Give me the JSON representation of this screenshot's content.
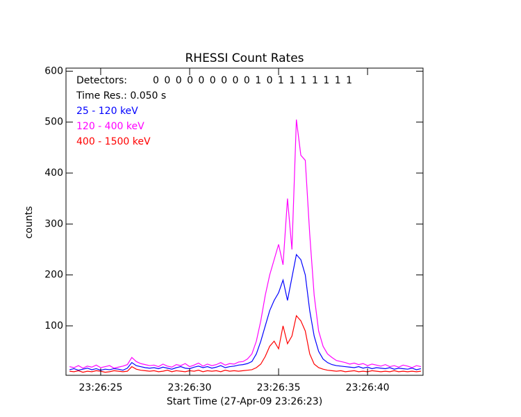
{
  "chart_data": {
    "type": "line",
    "title": "RHESSI Count Rates",
    "x_label": "Start Time (27-Apr-09 23:26:23)",
    "y_label": "counts",
    "detectors_label": "Detectors:",
    "detectors": "0 0 0 0 0 0 0 0 0 1 0 1 1 1 1 1 1 1",
    "time_res": "Time Res.: 0.050 s",
    "xlim": [
      23.05,
      43.12
    ],
    "ylim": [
      3,
      606
    ],
    "xticks": [
      {
        "value": 25,
        "label": "23:26:25"
      },
      {
        "value": 30,
        "label": "23:26:30"
      },
      {
        "value": 35,
        "label": "23:26:35"
      },
      {
        "value": 40,
        "label": "23:26:40"
      }
    ],
    "yticks": [
      100,
      200,
      300,
      400,
      500,
      600
    ],
    "x": [
      23.25,
      23.5,
      23.75,
      24,
      24.25,
      24.5,
      24.75,
      25,
      25.25,
      25.5,
      25.75,
      26,
      26.25,
      26.5,
      26.75,
      27,
      27.25,
      27.5,
      27.75,
      28,
      28.25,
      28.5,
      28.75,
      29,
      29.25,
      29.5,
      29.75,
      30,
      30.25,
      30.5,
      30.75,
      31,
      31.25,
      31.5,
      31.75,
      32,
      32.25,
      32.5,
      32.75,
      33,
      33.25,
      33.5,
      33.75,
      34,
      34.25,
      34.5,
      34.75,
      35,
      35.25,
      35.5,
      35.75,
      36,
      36.25,
      36.5,
      36.75,
      37,
      37.25,
      37.5,
      37.75,
      38,
      38.25,
      38.5,
      38.75,
      39,
      39.25,
      39.5,
      39.75,
      40,
      40.25,
      40.5,
      40.75,
      41,
      41.25,
      41.5,
      41.75,
      42,
      42.25,
      42.5,
      42.75,
      43
    ],
    "series": [
      {
        "name": "25 - 120 keV",
        "color": "#0000ff",
        "values": [
          14,
          16,
          13,
          15,
          17,
          14,
          16,
          13,
          15,
          14,
          16,
          15,
          13,
          17,
          28,
          22,
          20,
          18,
          17,
          18,
          16,
          19,
          17,
          15,
          18,
          20,
          17,
          16,
          19,
          21,
          18,
          20,
          17,
          19,
          22,
          18,
          20,
          21,
          23,
          24,
          26,
          30,
          45,
          70,
          100,
          130,
          150,
          165,
          190,
          150,
          195,
          240,
          230,
          200,
          130,
          80,
          50,
          35,
          28,
          24,
          22,
          21,
          20,
          19,
          18,
          20,
          17,
          19,
          16,
          18,
          17,
          16,
          18,
          15,
          17,
          16,
          15,
          17,
          14,
          16
        ]
      },
      {
        "name": "120 - 400 keV",
        "color": "#ff00ff",
        "values": [
          20,
          18,
          22,
          17,
          21,
          19,
          23,
          18,
          20,
          22,
          17,
          19,
          21,
          24,
          38,
          30,
          26,
          24,
          22,
          23,
          20,
          25,
          21,
          19,
          24,
          22,
          26,
          20,
          23,
          27,
          21,
          25,
          22,
          24,
          28,
          23,
          26,
          25,
          29,
          30,
          35,
          45,
          70,
          110,
          160,
          200,
          230,
          260,
          220,
          350,
          250,
          505,
          435,
          425,
          280,
          160,
          90,
          60,
          45,
          38,
          32,
          30,
          28,
          25,
          27,
          24,
          26,
          22,
          25,
          23,
          21,
          24,
          20,
          22,
          19,
          23,
          21,
          18,
          22,
          20
        ]
      },
      {
        "name": "400 - 1500 keV",
        "color": "#ff0000",
        "values": [
          11,
          10,
          12,
          9,
          11,
          10,
          12,
          11,
          9,
          10,
          12,
          11,
          10,
          11,
          20,
          15,
          13,
          12,
          11,
          12,
          10,
          11,
          13,
          10,
          12,
          11,
          10,
          12,
          11,
          13,
          10,
          12,
          11,
          12,
          10,
          13,
          11,
          12,
          11,
          12,
          13,
          14,
          18,
          25,
          40,
          60,
          70,
          55,
          100,
          65,
          80,
          120,
          110,
          90,
          45,
          25,
          18,
          15,
          13,
          12,
          11,
          12,
          10,
          11,
          12,
          10,
          11,
          10,
          12,
          11,
          10,
          11,
          10,
          12,
          10,
          11,
          10,
          11,
          10,
          11
        ]
      }
    ]
  }
}
